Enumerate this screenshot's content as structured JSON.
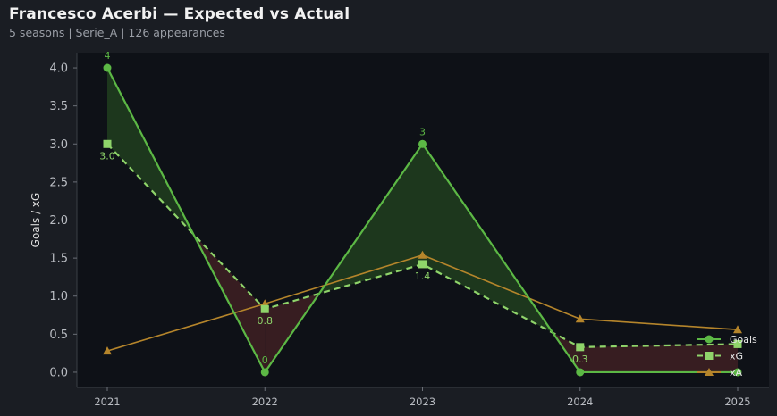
{
  "header": {
    "title": "Francesco Acerbi — Expected vs Actual",
    "subtitle": "5 seasons | Serie_A | 126 appearances"
  },
  "colors": {
    "goals": "#5cb845",
    "xg": "#8fd46a",
    "xa": "#b5852b",
    "fill_over": "#1f3a1d",
    "fill_under": "#3a1f22"
  },
  "chart_data": {
    "type": "line",
    "x": [
      "2021",
      "2022",
      "2023",
      "2024",
      "2025"
    ],
    "series": [
      {
        "name": "Goals",
        "values": [
          4,
          0,
          3,
          0,
          0
        ],
        "style": "solid",
        "marker": "circle",
        "labels": [
          "4",
          "0",
          "3",
          "",
          ""
        ]
      },
      {
        "name": "xG",
        "values": [
          3.0,
          0.83,
          1.42,
          0.33,
          0.37
        ],
        "style": "dashed",
        "marker": "square",
        "labels": [
          "3.0",
          "0.8",
          "1.4",
          "0.3",
          ""
        ]
      },
      {
        "name": "xA",
        "values": [
          0.28,
          0.9,
          1.54,
          0.7,
          0.56
        ],
        "style": "solid",
        "marker": "triangle",
        "labels": [
          "",
          "",
          "",
          "",
          ""
        ]
      }
    ],
    "title": "",
    "xlabel": "",
    "ylabel": "Goals / xG",
    "ylim": [
      -0.2,
      4.2
    ],
    "yticks": [
      "0.0",
      "0.5",
      "1.0",
      "1.5",
      "2.0",
      "2.5",
      "3.0",
      "3.5",
      "4.0"
    ],
    "legend": "bottom-right",
    "grid": false
  }
}
